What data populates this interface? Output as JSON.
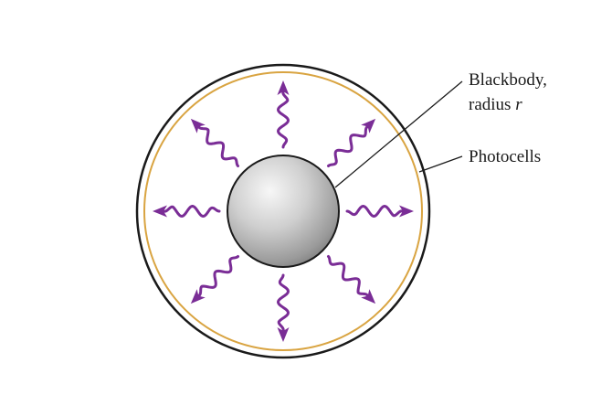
{
  "labels": {
    "blackbody_line1": "Blackbody,",
    "blackbody_line2_prefix": "radius ",
    "blackbody_line2_var": "r",
    "photocells": "Photocells"
  },
  "colors": {
    "outer_circle": "#1a1a1a",
    "photocell_ring": "#d9a441",
    "photon_arrows": "#7a2d96",
    "sphere_light": "#f5f5f5",
    "sphere_dark": "#7d7d7d"
  },
  "photons": {
    "count": 8,
    "directions_deg": [
      0,
      45,
      90,
      135,
      180,
      225,
      270,
      315
    ],
    "icon": "wavy-arrow-icon"
  }
}
